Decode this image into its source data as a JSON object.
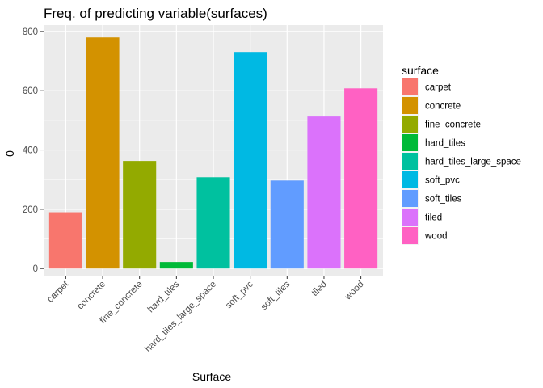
{
  "chart_data": {
    "type": "bar",
    "title": "Freq. of predicting variable(surfaces)",
    "xlabel": "Surface",
    "ylabel": "0",
    "categories": [
      "carpet",
      "concrete",
      "fine_concrete",
      "hard_tiles",
      "hard_tiles_large_space",
      "soft_pvc",
      "soft_tiles",
      "tiled",
      "wood"
    ],
    "values": [
      190,
      780,
      363,
      22,
      308,
      731,
      297,
      513,
      608
    ],
    "colors": [
      "#F8766D",
      "#D39200",
      "#93AA00",
      "#00BA38",
      "#00C19F",
      "#00B9E3",
      "#619CFF",
      "#DB72FB",
      "#FF61C3"
    ],
    "ylim": [
      0,
      840
    ],
    "yticks": [
      0,
      200,
      400,
      600,
      800
    ],
    "grid": true,
    "panel_background": "#EBEBEB",
    "legend": {
      "title": "surface",
      "position": "right",
      "entries": [
        "carpet",
        "concrete",
        "fine_concrete",
        "hard_tiles",
        "hard_tiles_large_space",
        "soft_pvc",
        "soft_tiles",
        "tiled",
        "wood"
      ]
    }
  }
}
